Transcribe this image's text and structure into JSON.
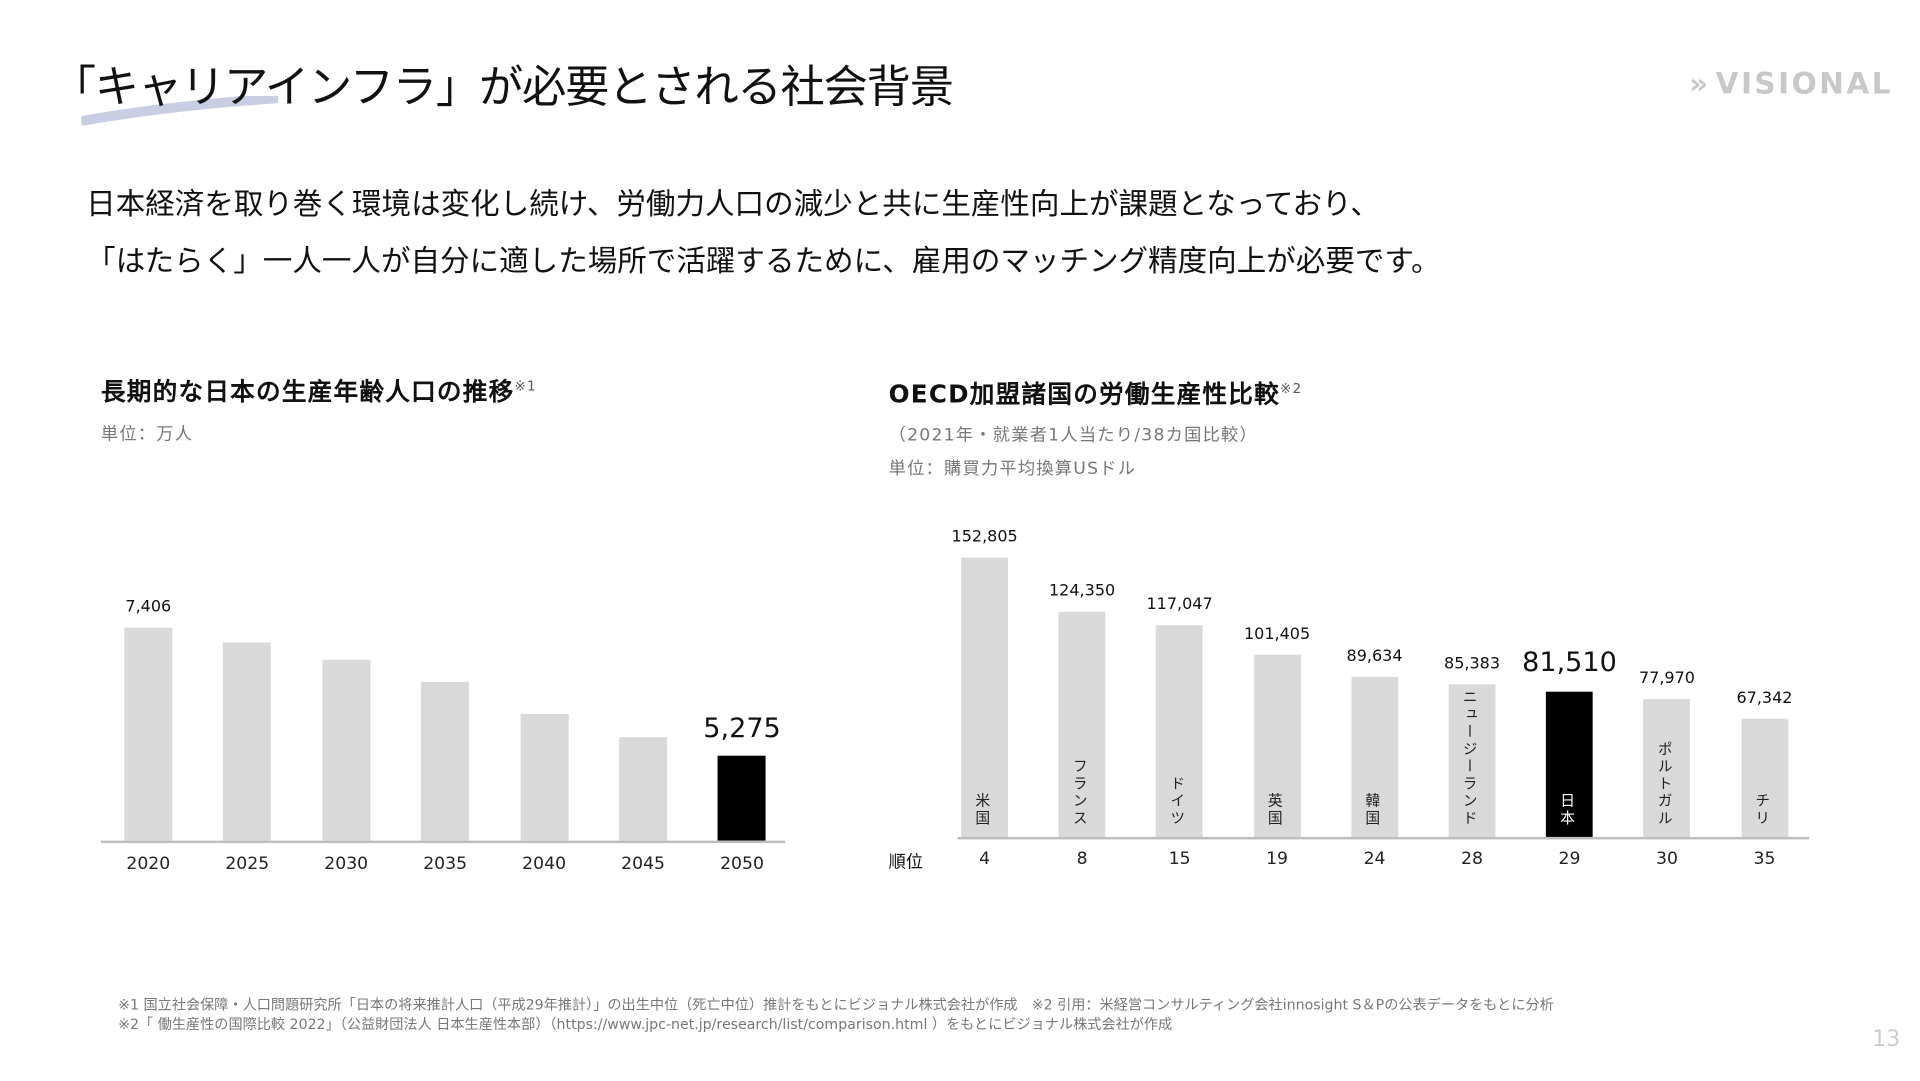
{
  "header": {
    "title": "「キャリアインフラ」が必要とされる社会背景",
    "logo": "VISIONAL"
  },
  "body": {
    "line1": "日本経済を取り巻く環境は変化し続け、労働力人口の減少と共に生産性向上が課題となっており、",
    "line2": "「はたらく」一人一人が自分に適した場所で活躍するために、雇用のマッチング精度向上が必要です。"
  },
  "chart_data": [
    {
      "type": "bar",
      "title": "長期的な日本の生産年齢人口の推移",
      "note": "※1",
      "unit": "単位：万人",
      "categories": [
        "2020",
        "2025",
        "2030",
        "2035",
        "2040",
        "2045",
        "2050"
      ],
      "values": [
        7406,
        7170,
        6875,
        6494,
        5978,
        5584,
        5275
      ],
      "labels": {
        "0": "7,406",
        "6": "5,275"
      },
      "highlight": "2050",
      "ylim": [
        3860,
        7406
      ],
      "highlight_color": "#000000",
      "bar_color": "#d9d9d9"
    },
    {
      "type": "bar",
      "title": "OECD加盟諸国の労働生産性比較",
      "note": "※2",
      "subtitle": "（2021年・就業者1人当たり/38カ国比較）",
      "unit": "単位：購買力平均換算USドル",
      "rank_label": "順位",
      "categories": [
        "米国",
        "フランス",
        "ドイツ",
        "英国",
        "韓国",
        "ニュージーランド",
        "日本",
        "ポルトガル",
        "チリ"
      ],
      "values": [
        152805,
        124350,
        117047,
        101405,
        89634,
        85383,
        81510,
        77970,
        67342
      ],
      "value_labels": [
        "152,805",
        "124,350",
        "117,047",
        "101,405",
        "89,634",
        "85,383",
        "81,510",
        "77,970",
        "67,342"
      ],
      "ranks": [
        "4",
        "8",
        "15",
        "19",
        "24",
        "28",
        "29",
        "30",
        "35"
      ],
      "highlight": "日本",
      "ylim": [
        4700,
        152805
      ],
      "highlight_color": "#000000",
      "bar_color": "#d9d9d9"
    }
  ],
  "footer": {
    "line1": "※1 国立社会保障・人口問題研究所「日本の将来推計人口（平成29年推計）」の出生中位（死亡中位）推計をもとにビジョナル株式会社が作成　※2 引用：米経営コンサルティング会社innosight S＆Pの公表データをもとに分析",
    "line2": "※2「 働生産性の国際比較 2022」（公益財団法人 日本生産性本部）（https://www.jpc-net.jp/research/list/comparison.html ）をもとにビジョナル株式会社が作成",
    "page": "13"
  }
}
